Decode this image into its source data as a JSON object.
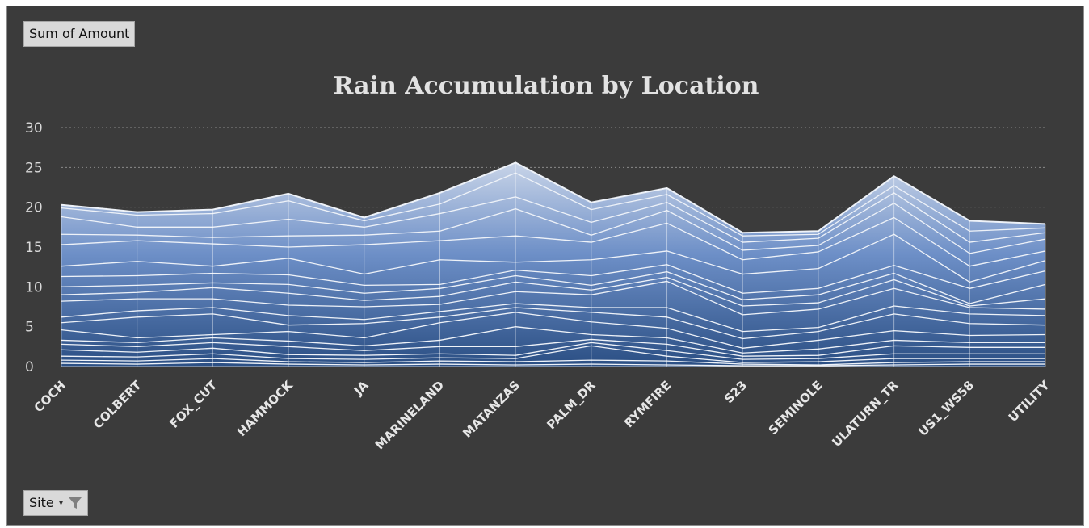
{
  "field_buttons": {
    "value_field": "Sum of Amount",
    "axis_field": "Site",
    "filter_icon": "funnel-filter-icon"
  },
  "chart_data": {
    "type": "area",
    "stacked": true,
    "title": "Rain Accumulation by Location",
    "xlabel": "",
    "ylabel": "",
    "ylim": [
      0,
      30
    ],
    "yticks": [
      0,
      5,
      10,
      15,
      20,
      25,
      30
    ],
    "grid": true,
    "legend": "none",
    "categories": [
      "COCH",
      "COLBERT",
      "FOX_CUT",
      "HAMMOCK",
      "JA",
      "MARINELAND",
      "MATANZAS",
      "PALM_DR",
      "RYMFIRE",
      "S23",
      "SEMINOLE",
      "ULATURN_TR",
      "US1_WS58",
      "UTILITY"
    ],
    "boundaries": [
      [
        0.4,
        0.3,
        0.5,
        0.3,
        0.2,
        0.3,
        0.2,
        0.3,
        0.2,
        0.1,
        0.1,
        0.2,
        0.3,
        0.3
      ],
      [
        0.8,
        0.7,
        1.0,
        0.6,
        0.5,
        0.7,
        0.6,
        0.8,
        0.7,
        0.3,
        0.2,
        0.5,
        0.6,
        0.6
      ],
      [
        1.3,
        1.2,
        1.6,
        1.0,
        0.9,
        1.1,
        1.0,
        2.6,
        1.3,
        0.5,
        0.6,
        1.0,
        1.0,
        1.0
      ],
      [
        2.1,
        1.8,
        2.3,
        1.5,
        1.4,
        1.6,
        1.4,
        3.0,
        2.0,
        0.9,
        1.0,
        1.6,
        1.6,
        1.6
      ],
      [
        2.8,
        2.5,
        3.0,
        2.5,
        2.0,
        2.5,
        2.5,
        3.4,
        2.8,
        1.3,
        1.4,
        2.6,
        2.4,
        2.4
      ],
      [
        3.3,
        3.0,
        3.6,
        3.2,
        2.6,
        3.3,
        5.0,
        4.0,
        3.6,
        1.7,
        2.2,
        3.3,
        3.0,
        3.0
      ],
      [
        4.6,
        3.6,
        4.0,
        4.4,
        3.6,
        5.5,
        6.8,
        5.6,
        4.8,
        2.3,
        3.3,
        4.5,
        3.9,
        4.0
      ],
      [
        5.5,
        6.2,
        6.6,
        5.2,
        5.4,
        6.2,
        7.4,
        6.8,
        6.2,
        3.5,
        4.4,
        6.6,
        5.4,
        5.2
      ],
      [
        6.2,
        7.0,
        7.4,
        6.4,
        5.9,
        6.9,
        7.9,
        7.4,
        7.4,
        4.4,
        4.9,
        7.6,
        6.6,
        6.4
      ],
      [
        8.2,
        8.5,
        8.5,
        7.7,
        7.5,
        7.8,
        9.4,
        9.0,
        10.7,
        6.5,
        7.2,
        9.8,
        7.4,
        7.2
      ],
      [
        9.0,
        9.3,
        9.9,
        9.2,
        8.3,
        8.8,
        10.6,
        9.6,
        11.2,
        7.6,
        8.0,
        10.9,
        7.6,
        8.5
      ],
      [
        10.0,
        10.2,
        10.5,
        10.3,
        9.2,
        9.8,
        11.4,
        10.2,
        11.9,
        8.4,
        9.0,
        11.7,
        7.9,
        10.3
      ],
      [
        11.3,
        11.4,
        11.7,
        11.5,
        10.2,
        10.3,
        12.1,
        11.4,
        12.8,
        9.2,
        9.8,
        12.7,
        9.8,
        12.0
      ],
      [
        12.6,
        13.2,
        12.6,
        13.6,
        11.6,
        13.4,
        13.1,
        13.4,
        14.5,
        11.6,
        12.3,
        16.6,
        10.6,
        13.3
      ],
      [
        15.3,
        15.8,
        15.4,
        15.0,
        15.3,
        15.8,
        16.4,
        15.6,
        18.0,
        13.4,
        14.4,
        18.7,
        12.6,
        14.5
      ],
      [
        16.6,
        16.5,
        16.2,
        16.4,
        16.5,
        17.0,
        19.8,
        16.5,
        19.6,
        14.6,
        15.2,
        20.5,
        14.2,
        16.0
      ],
      [
        18.8,
        17.5,
        17.5,
        18.5,
        17.5,
        19.2,
        21.3,
        18.1,
        20.6,
        15.6,
        16.1,
        21.8,
        15.6,
        16.8
      ],
      [
        19.9,
        19.0,
        19.2,
        20.8,
        18.3,
        20.4,
        24.3,
        19.7,
        21.6,
        16.4,
        16.6,
        22.7,
        17.0,
        17.4
      ],
      [
        20.3,
        19.4,
        19.7,
        21.7,
        18.7,
        21.8,
        25.6,
        20.6,
        22.4,
        16.8,
        17.0,
        23.9,
        18.3,
        17.9
      ]
    ]
  }
}
